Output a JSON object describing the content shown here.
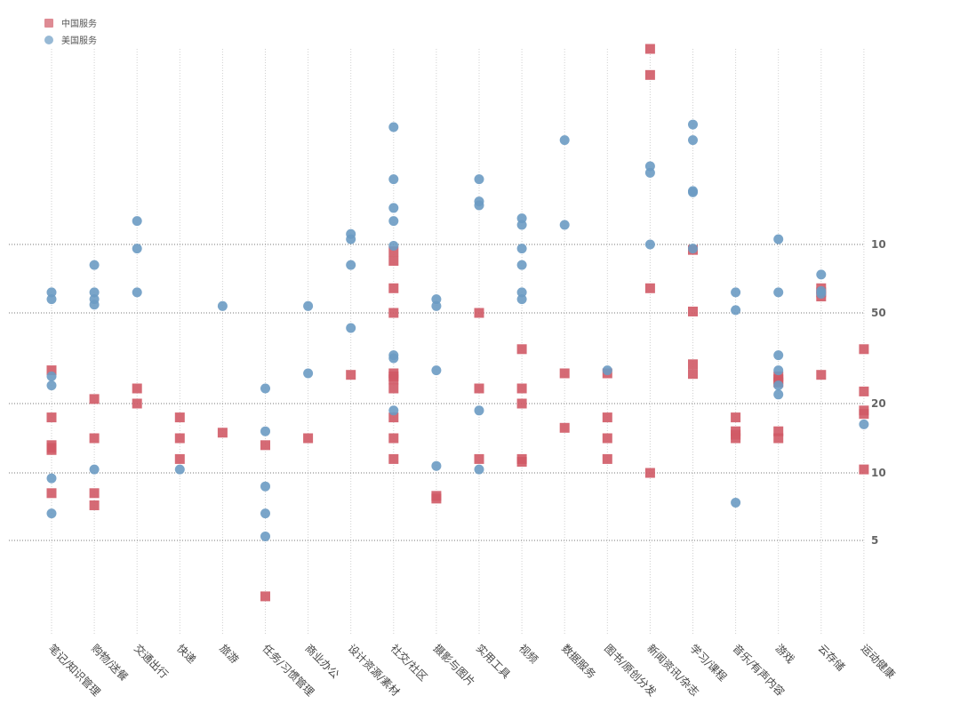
{
  "legend": [
    {
      "name": "中国服务",
      "color": "#d05a66",
      "shape": "square"
    },
    {
      "name": "美国服务",
      "color": "#6b9bc3",
      "shape": "circle"
    }
  ],
  "chart_data": {
    "type": "scatter",
    "y_ticks": [
      {
        "label": "10",
        "rank": 10
      },
      {
        "label": "50",
        "rank": 50
      },
      {
        "label": "20",
        "rank": 20
      },
      {
        "label": "10",
        "rank": 10
      },
      {
        "label": "5",
        "rank": 5
      }
    ],
    "categories": [
      "笔记/知识管理",
      "购物/送餐",
      "交通出行",
      "快递",
      "旅游",
      "任务/习惯管理",
      "商业办公",
      "设计资源/素材",
      "社交/社区",
      "摄影与图片",
      "实用工具",
      "视频",
      "数据服务",
      "图书/原创分发",
      "新闻资讯/杂志",
      "学习/课程",
      "音乐/有声内容",
      "游戏",
      "云存储",
      "运动健康"
    ],
    "series": [
      {
        "name": "中国服务",
        "points": [
          [
            0,
            31
          ],
          [
            0,
            18
          ],
          [
            0,
            14
          ],
          [
            0,
            13.6
          ],
          [
            0,
            13.3
          ],
          [
            0,
            8.5
          ],
          [
            1,
            21.5
          ],
          [
            1,
            15
          ],
          [
            1,
            8.5
          ],
          [
            1,
            7.6
          ],
          [
            2,
            25
          ],
          [
            2,
            20
          ],
          [
            3,
            18
          ],
          [
            3,
            15
          ],
          [
            3,
            12
          ],
          [
            4,
            15.8
          ],
          [
            5,
            14
          ],
          [
            5,
            3.3
          ],
          [
            6,
            15
          ],
          [
            7,
            29.5
          ],
          [
            8,
            95
          ],
          [
            8,
            88
          ],
          [
            8,
            68
          ],
          [
            8,
            50
          ],
          [
            8,
            30
          ],
          [
            8,
            29
          ],
          [
            8,
            28
          ],
          [
            8,
            25
          ],
          [
            8,
            18
          ],
          [
            8,
            15
          ],
          [
            8,
            12
          ],
          [
            9,
            8.3
          ],
          [
            9,
            8.1
          ],
          [
            10,
            50
          ],
          [
            10,
            25
          ],
          [
            10,
            12
          ],
          [
            11,
            38
          ],
          [
            11,
            25
          ],
          [
            11,
            20
          ],
          [
            11,
            12
          ],
          [
            11,
            11.6
          ],
          [
            12,
            30
          ],
          [
            12,
            16.5
          ],
          [
            13,
            30
          ],
          [
            13,
            18
          ],
          [
            13,
            15
          ],
          [
            13,
            12
          ],
          [
            14,
            250
          ],
          [
            14,
            230
          ],
          [
            14,
            68
          ],
          [
            14,
            10
          ],
          [
            15,
            96
          ],
          [
            15,
            51
          ],
          [
            15,
            33
          ],
          [
            15,
            29.8
          ],
          [
            16,
            18
          ],
          [
            16,
            16
          ],
          [
            16,
            15.5
          ],
          [
            16,
            15
          ],
          [
            17,
            29
          ],
          [
            17,
            28
          ],
          [
            17,
            27
          ],
          [
            17,
            16
          ],
          [
            17,
            15
          ],
          [
            18,
            68
          ],
          [
            18,
            65
          ],
          [
            18,
            62
          ],
          [
            18,
            29.5
          ],
          [
            19,
            38
          ],
          [
            19,
            24
          ],
          [
            19,
            19
          ],
          [
            19,
            18.5
          ],
          [
            19,
            10.5
          ]
        ]
      },
      {
        "name": "美国服务",
        "points": [
          [
            0,
            65
          ],
          [
            0,
            60
          ],
          [
            0,
            29
          ],
          [
            0,
            26
          ],
          [
            0,
            9.6
          ],
          [
            0,
            7
          ],
          [
            1,
            85
          ],
          [
            1,
            65
          ],
          [
            1,
            60
          ],
          [
            1,
            56
          ],
          [
            1,
            10.5
          ],
          [
            2,
            118
          ],
          [
            2,
            97
          ],
          [
            2,
            65
          ],
          [
            3,
            10.5
          ],
          [
            4,
            55
          ],
          [
            5,
            25
          ],
          [
            5,
            16
          ],
          [
            5,
            9
          ],
          [
            5,
            7
          ],
          [
            5,
            5.3
          ],
          [
            6,
            55
          ],
          [
            6,
            30
          ],
          [
            7,
            108
          ],
          [
            7,
            104
          ],
          [
            7,
            85
          ],
          [
            7,
            45
          ],
          [
            8,
            190
          ],
          [
            8,
            150
          ],
          [
            8,
            128
          ],
          [
            8,
            118
          ],
          [
            8,
            99
          ],
          [
            8,
            36
          ],
          [
            8,
            35
          ],
          [
            8,
            19
          ],
          [
            9,
            60
          ],
          [
            9,
            55
          ],
          [
            9,
            31
          ],
          [
            9,
            11
          ],
          [
            10,
            150
          ],
          [
            10,
            133
          ],
          [
            10,
            130
          ],
          [
            10,
            19
          ],
          [
            10,
            10.5
          ],
          [
            11,
            120
          ],
          [
            11,
            115
          ],
          [
            11,
            97
          ],
          [
            11,
            85
          ],
          [
            11,
            65
          ],
          [
            11,
            60
          ],
          [
            12,
            180
          ],
          [
            12,
            115
          ],
          [
            13,
            31
          ],
          [
            14,
            160
          ],
          [
            14,
            155
          ],
          [
            14,
            100
          ],
          [
            15,
            192
          ],
          [
            15,
            180
          ],
          [
            15,
            141
          ],
          [
            15,
            140
          ],
          [
            15,
            97
          ],
          [
            16,
            65
          ],
          [
            16,
            52
          ],
          [
            16,
            7.8
          ],
          [
            17,
            104
          ],
          [
            17,
            65
          ],
          [
            17,
            36
          ],
          [
            17,
            31
          ],
          [
            17,
            26
          ],
          [
            17,
            23
          ],
          [
            18,
            78
          ],
          [
            18,
            66
          ],
          [
            18,
            64
          ],
          [
            19,
            17
          ]
        ]
      }
    ]
  }
}
